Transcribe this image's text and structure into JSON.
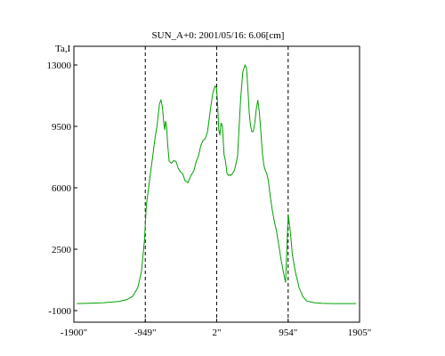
{
  "chart_data": {
    "type": "line",
    "title": "SUN_A+0: 2001/05/16: 6.06[cm]",
    "ylabel": "Ta,I",
    "xlabel": "",
    "xlim": [
      -1900,
      1905
    ],
    "ylim": [
      -1000,
      14500
    ],
    "x_ticks": [
      {
        "value": -1900,
        "label": "-1900\""
      },
      {
        "value": -949,
        "label": "-949\""
      },
      {
        "value": 2,
        "label": "2\""
      },
      {
        "value": 954,
        "label": "954\""
      },
      {
        "value": 1905,
        "label": "1905\""
      }
    ],
    "y_ticks": [
      {
        "value": 13000,
        "label": "13000"
      },
      {
        "value": 9500,
        "label": "9500"
      },
      {
        "value": 6000,
        "label": "6000"
      },
      {
        "value": 2500,
        "label": "2500"
      },
      {
        "value": -1000,
        "label": "-1000"
      }
    ],
    "markers_x": [
      -949,
      2,
      954
    ],
    "grid": false,
    "series": [
      {
        "color": "#00a000",
        "x": [
          -1860,
          -1700,
          -1500,
          -1300,
          -1200,
          -1120,
          -1050,
          -1000,
          -960,
          -935,
          -910,
          -880,
          -850,
          -820,
          -790,
          -760,
          -740,
          -720,
          -700,
          -690,
          -680,
          -665,
          -650,
          -630,
          -600,
          -570,
          -540,
          -510,
          -480,
          -450,
          -420,
          -380,
          -340,
          -300,
          -270,
          -240,
          -210,
          -180,
          -150,
          -120,
          -80,
          -50,
          -20,
          0,
          15,
          30,
          45,
          60,
          80,
          100,
          120,
          140,
          160,
          175,
          190,
          210,
          240,
          280,
          320,
          350,
          380,
          400,
          420,
          435,
          450,
          470,
          490,
          510,
          530,
          550,
          570,
          590,
          610,
          630,
          650,
          670,
          690,
          710,
          740,
          770,
          800,
          830,
          860,
          890,
          920,
          954,
          980,
          1010,
          1050,
          1100,
          1150,
          1200,
          1300,
          1400,
          1550,
          1700,
          1860
        ],
        "y": [
          -600,
          -580,
          -550,
          -480,
          -380,
          -200,
          300,
          1200,
          3000,
          5000,
          5800,
          6800,
          7800,
          8800,
          9600,
          10800,
          11000,
          10600,
          9600,
          9300,
          9800,
          9500,
          8400,
          7500,
          7400,
          7550,
          7500,
          7100,
          6900,
          6800,
          6400,
          6300,
          6700,
          7000,
          7500,
          7800,
          8400,
          8700,
          8800,
          9200,
          10500,
          11400,
          11800,
          11700,
          10700,
          9300,
          9000,
          9700,
          9500,
          7900,
          7500,
          6800,
          6700,
          6750,
          6700,
          6800,
          7000,
          7800,
          11000,
          12600,
          13000,
          12800,
          11500,
          10300,
          9600,
          9200,
          9200,
          9700,
          10500,
          11000,
          10300,
          9200,
          8000,
          7300,
          7000,
          6800,
          6400,
          5700,
          4800,
          4100,
          3500,
          2700,
          1900,
          1200,
          600,
          4500,
          3600,
          2200,
          1200,
          300,
          -200,
          -450,
          -550,
          -580,
          -600,
          -600,
          -600
        ]
      }
    ]
  }
}
